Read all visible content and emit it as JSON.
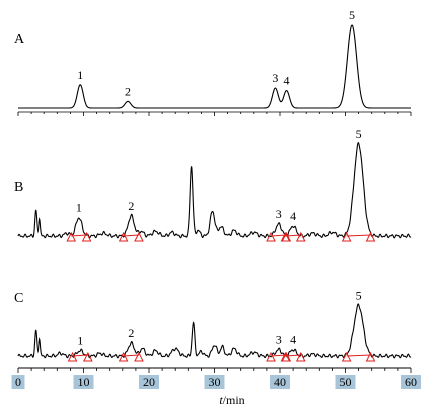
{
  "chart_data": {
    "type": "line",
    "xlabel_italic": "t",
    "xlabel_rest": "/min",
    "xlim": [
      0,
      60
    ],
    "x_ticks": [
      "0",
      "10",
      "20",
      "30",
      "40",
      "50",
      "60"
    ],
    "highlight_color": "#a8c4d8",
    "trace_color": "#000000",
    "integration_color": "#e0201c",
    "panels": [
      {
        "name": "A",
        "peaks": [
          {
            "label": "1",
            "t": 9.5,
            "height": 0.28
          },
          {
            "label": "2",
            "t": 16.8,
            "height": 0.08
          },
          {
            "label": "3",
            "t": 39.3,
            "height": 0.24
          },
          {
            "label": "4",
            "t": 41.0,
            "height": 0.21
          },
          {
            "label": "5",
            "t": 51.0,
            "height": 1.0
          }
        ]
      },
      {
        "name": "B",
        "peaks": [
          {
            "label": "1",
            "t": 9.3,
            "height": 0.2
          },
          {
            "label": "2",
            "t": 17.3,
            "height": 0.22
          },
          {
            "label": "3",
            "t": 39.8,
            "height": 0.13
          },
          {
            "label": "4",
            "t": 42.0,
            "height": 0.11
          },
          {
            "label": "5",
            "t": 52.0,
            "height": 1.0
          }
        ]
      },
      {
        "name": "C",
        "peaks": [
          {
            "label": "1",
            "t": 9.5,
            "height": 0.06
          },
          {
            "label": "2",
            "t": 17.3,
            "height": 0.14
          },
          {
            "label": "3",
            "t": 39.8,
            "height": 0.07
          },
          {
            "label": "4",
            "t": 42.0,
            "height": 0.07
          },
          {
            "label": "5",
            "t": 52.0,
            "height": 0.55
          }
        ]
      }
    ]
  }
}
